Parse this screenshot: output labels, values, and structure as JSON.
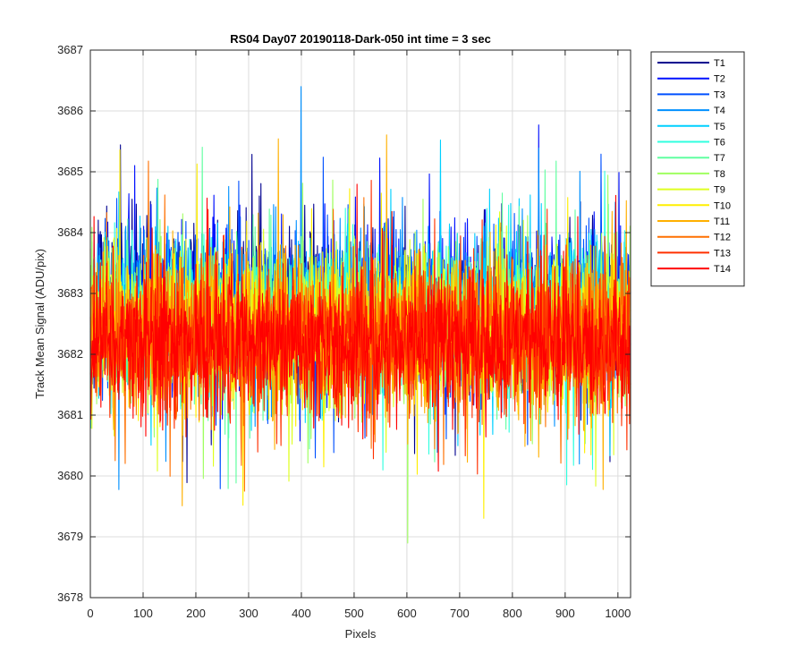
{
  "chart_data": {
    "type": "line",
    "title": "RS04 Day07 20190118-Dark-050 int time = 3 sec",
    "xlabel": "Pixels",
    "ylabel": "Track Mean Signal (ADU/pix)",
    "xlim": [
      0,
      1024
    ],
    "ylim": [
      3678,
      3687
    ],
    "x_ticks": [
      0,
      100,
      200,
      300,
      400,
      500,
      600,
      700,
      800,
      900,
      1000
    ],
    "y_ticks": [
      3678,
      3679,
      3680,
      3681,
      3682,
      3683,
      3684,
      3685,
      3686,
      3687
    ],
    "grid": true,
    "legend_position": "outside-right-top",
    "n_points": 1024,
    "series": [
      {
        "name": "T1",
        "color": "#00008f",
        "mean": 3682.8,
        "amplitude": 1.1
      },
      {
        "name": "T2",
        "color": "#0010ff",
        "mean": 3682.8,
        "amplitude": 1.1
      },
      {
        "name": "T3",
        "color": "#0050ff",
        "mean": 3682.7,
        "amplitude": 1.1
      },
      {
        "name": "T4",
        "color": "#0090ff",
        "mean": 3682.7,
        "amplitude": 1.1
      },
      {
        "name": "T5",
        "color": "#00d0ff",
        "mean": 3682.6,
        "amplitude": 1.1
      },
      {
        "name": "T6",
        "color": "#30ffdf",
        "mean": 3682.6,
        "amplitude": 1.1
      },
      {
        "name": "T7",
        "color": "#60ffa0",
        "mean": 3682.5,
        "amplitude": 1.1
      },
      {
        "name": "T8",
        "color": "#a0ff60",
        "mean": 3682.5,
        "amplitude": 1.1
      },
      {
        "name": "T9",
        "color": "#dfff20",
        "mean": 3682.4,
        "amplitude": 1.1
      },
      {
        "name": "T10",
        "color": "#ffef00",
        "mean": 3682.4,
        "amplitude": 1.1
      },
      {
        "name": "T11",
        "color": "#ffb000",
        "mean": 3682.3,
        "amplitude": 1.1
      },
      {
        "name": "T12",
        "color": "#ff7000",
        "mean": 3682.3,
        "amplitude": 1.1
      },
      {
        "name": "T13",
        "color": "#ff3000",
        "mean": 3682.2,
        "amplitude": 1.1
      },
      {
        "name": "T14",
        "color": "#ff0000",
        "mean": 3682.2,
        "amplitude": 1.0
      }
    ]
  }
}
